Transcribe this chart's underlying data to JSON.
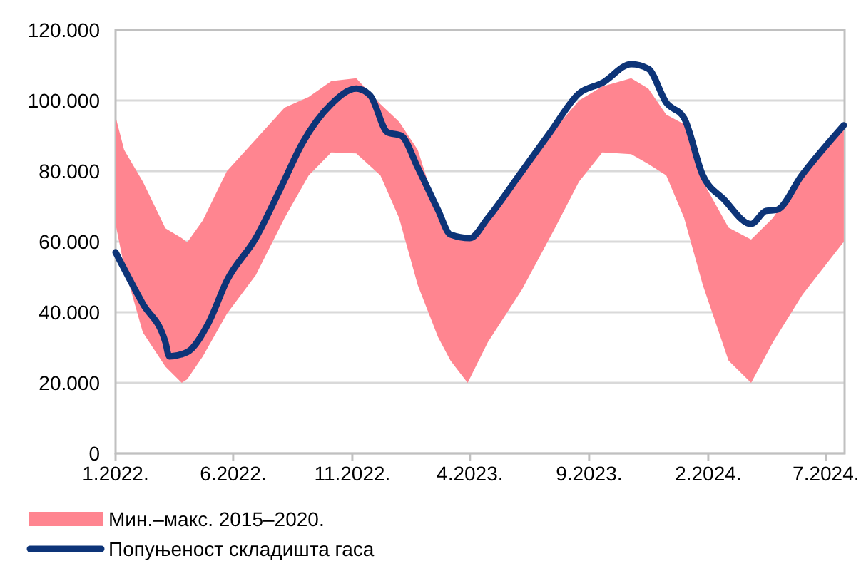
{
  "chart_data": {
    "type": "line",
    "xlim": [
      "2022-01-01",
      "2024-07-25"
    ],
    "xticks": [
      {
        "value": "2022-01-01",
        "label": "1.2022."
      },
      {
        "value": "2022-06-01",
        "label": "6.2022."
      },
      {
        "value": "2022-11-01",
        "label": "11.2022."
      },
      {
        "value": "2023-04-01",
        "label": "4.2023."
      },
      {
        "value": "2023-09-01",
        "label": "9.2023."
      },
      {
        "value": "2024-02-01",
        "label": "2.2024."
      },
      {
        "value": "2024-07-01",
        "label": "7.2024."
      }
    ],
    "ylim": [
      0,
      120000
    ],
    "yticks": [
      0,
      {
        "value": 20000,
        "label": "20.000"
      },
      {
        "value": 40000,
        "label": "40.000"
      },
      {
        "value": 60000,
        "label": "60.000"
      },
      {
        "value": 80000,
        "label": "80.000"
      },
      {
        "value": 100000,
        "label": "100.000"
      },
      {
        "value": 120000,
        "label": "120.000"
      }
    ],
    "grid": "y",
    "legend": "bottom",
    "line_style": "solid",
    "marker": "none",
    "series": [
      {
        "name": "Мин.–макс. 2015–2020.",
        "type": "area",
        "color": "#ff8590",
        "x": [
          "2022-01-01",
          "2022-01-12",
          "2022-02-05",
          "2022-03-06",
          "2022-03-27",
          "2022-04-03",
          "2022-04-23",
          "2022-05-24",
          "2022-06-30",
          "2022-08-06",
          "2022-09-06",
          "2022-10-05",
          "2022-11-06",
          "2022-12-07",
          "2022-12-31",
          "2023-01-24",
          "2023-02-19",
          "2023-03-07",
          "2023-03-29",
          "2023-04-24",
          "2023-06-07",
          "2023-07-19",
          "2023-08-19",
          "2023-09-18",
          "2023-10-25",
          "2023-11-16",
          "2023-12-09",
          "2024-01-01",
          "2024-01-25",
          "2024-02-27",
          "2024-03-27",
          "2024-04-24",
          "2024-06-01",
          "2024-07-24"
        ],
        "lower": [
          65000,
          53000,
          34300,
          24600,
          20000,
          21000,
          27500,
          39600,
          50500,
          66700,
          78800,
          85300,
          85000,
          78800,
          66700,
          47700,
          33000,
          26300,
          20000,
          31500,
          46500,
          63800,
          77000,
          85300,
          84800,
          82000,
          78800,
          66700,
          47700,
          26300,
          20000,
          31500,
          45000,
          60000
        ],
        "values": [
          null,
          null,
          null,
          null,
          null,
          null,
          null,
          null,
          null,
          null,
          null,
          null,
          null,
          null,
          null,
          null,
          null,
          null,
          null,
          null,
          null,
          null,
          null,
          null,
          null,
          null,
          null,
          null,
          null,
          null,
          null,
          null,
          null,
          null
        ],
        "upper": [
          95400,
          86000,
          77000,
          63800,
          61000,
          59800,
          66000,
          80000,
          89000,
          98000,
          101000,
          105500,
          106300,
          99000,
          94000,
          86000,
          68000,
          62500,
          61000,
          66700,
          80000,
          92000,
          100000,
          104000,
          106300,
          103400,
          96000,
          93300,
          77000,
          64000,
          60600,
          66700,
          79000,
          92000
        ]
      },
      {
        "name": "Попуњеност складишта гаса",
        "color": "#0d3478",
        "x": [
          "2022-01-01",
          "2022-02-05",
          "2022-03-06",
          "2022-03-11",
          "2022-04-03",
          "2022-04-30",
          "2022-05-24",
          "2022-06-30",
          "2022-07-31",
          "2022-08-29",
          "2022-10-05",
          "2022-11-06",
          "2022-11-24",
          "2022-12-16",
          "2023-01-03",
          "2023-01-24",
          "2023-02-19",
          "2023-03-07",
          "2023-04-01",
          "2023-04-24",
          "2023-06-07",
          "2023-07-13",
          "2023-08-19",
          "2023-09-18",
          "2023-10-25",
          "2023-11-16",
          "2023-12-09",
          "2024-01-01",
          "2024-01-25",
          "2024-02-21",
          "2024-03-27",
          "2024-04-15",
          "2024-04-29",
          "2024-05-31",
          "2024-07-24"
        ],
        "values": [
          57000,
          42400,
          31500,
          27500,
          28700,
          36800,
          49000,
          61000,
          74700,
          88000,
          99000,
          103400,
          101400,
          91000,
          90000,
          81000,
          69000,
          62000,
          61000,
          66700,
          80000,
          91000,
          102000,
          105000,
          110300,
          109000,
          99400,
          95000,
          78800,
          72000,
          65000,
          68700,
          69000,
          78800,
          93000
        ]
      }
    ]
  }
}
